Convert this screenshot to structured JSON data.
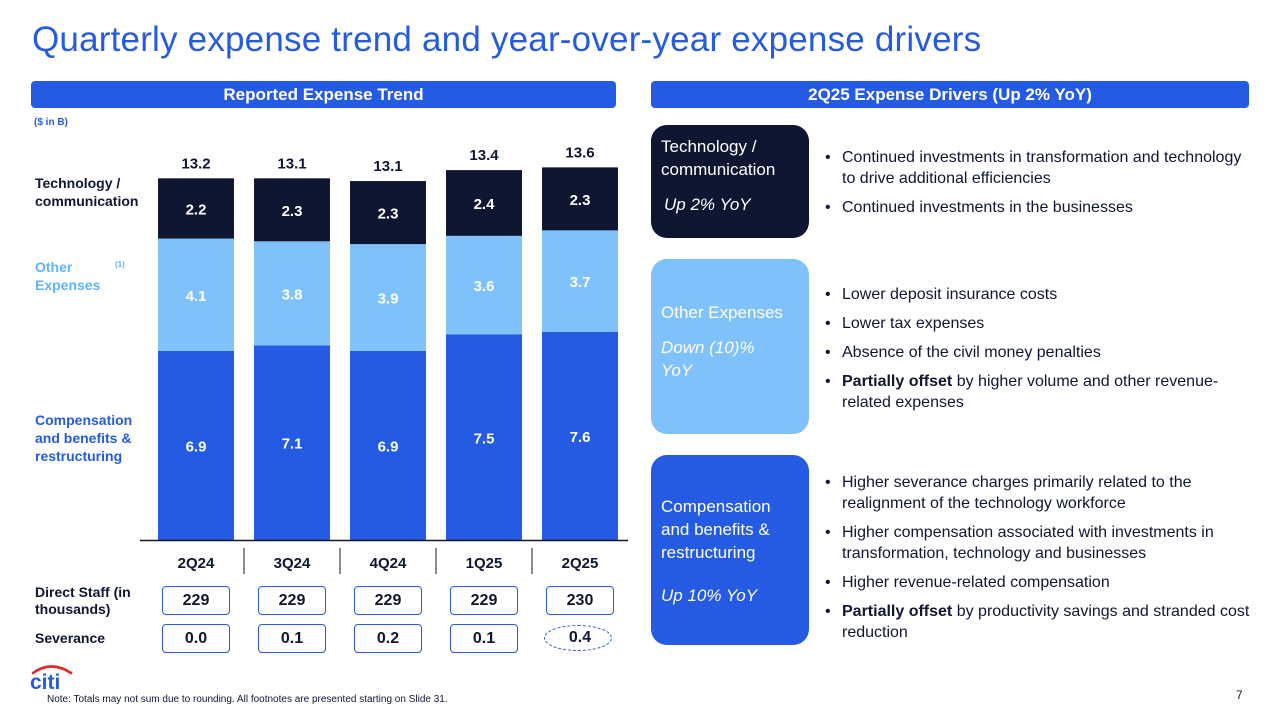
{
  "title": "Quarterly expense trend and year-over-year expense drivers",
  "left_header": "Reported Expense Trend",
  "right_header": "2Q25 Expense Drivers (Up 2% YoY)",
  "unit_label": "($ in B)",
  "row_labels": {
    "tech": "Technology / communication",
    "other": "Other Expenses",
    "other_sup": "(1)",
    "comp": "Compensation and benefits & restructuring"
  },
  "colors": {
    "accent": "#255be3",
    "tech": "#0f1632",
    "other": "#7ec1fb",
    "comp": "#255be3"
  },
  "chart_data": {
    "type": "bar",
    "stacked": true,
    "title": "Reported Expense Trend",
    "ylabel": "$ in B",
    "categories": [
      "2Q24",
      "3Q24",
      "4Q24",
      "1Q25",
      "2Q25"
    ],
    "series": [
      {
        "name": "Compensation and benefits & restructuring",
        "values": [
          "6.9",
          "7.1",
          "6.9",
          "7.5",
          "7.6"
        ]
      },
      {
        "name": "Other Expenses",
        "values": [
          "4.1",
          "3.8",
          "3.9",
          "3.6",
          "3.7"
        ]
      },
      {
        "name": "Technology / communication",
        "values": [
          "2.2",
          "2.3",
          "2.3",
          "2.4",
          "2.3"
        ]
      }
    ],
    "totals": [
      "13.2",
      "13.1",
      "13.1",
      "13.4",
      "13.6"
    ]
  },
  "metrics": {
    "staff_label": "Direct Staff (in thousands)",
    "staff_values": [
      "229",
      "229",
      "229",
      "229",
      "230"
    ],
    "severance_label": "Severance",
    "severance_values": [
      "0.0",
      "0.1",
      "0.2",
      "0.1",
      "0.4"
    ]
  },
  "drivers": {
    "tech": {
      "title": "Technology / communication",
      "change": "Up 2% YoY",
      "bullets": [
        {
          "bold": "",
          "text": "Continued investments in transformation and technology to drive additional efficiencies"
        },
        {
          "bold": "",
          "text": "Continued investments in the businesses"
        }
      ]
    },
    "other": {
      "title": "Other Expenses",
      "change": "Down (10)% YoY",
      "bullets": [
        {
          "bold": "",
          "text": "Lower deposit insurance costs"
        },
        {
          "bold": "",
          "text": "Lower tax expenses"
        },
        {
          "bold": "",
          "text": "Absence of the civil money penalties"
        },
        {
          "bold": "Partially offset",
          "text": " by higher volume and other revenue-related expenses"
        }
      ]
    },
    "comp": {
      "title": "Compensation and benefits & restructuring",
      "change": "Up 10% YoY",
      "bullets": [
        {
          "bold": "",
          "text": "Higher severance charges primarily related to the realignment of the technology workforce"
        },
        {
          "bold": "",
          "text": "Higher compensation associated with investments in transformation, technology and businesses"
        },
        {
          "bold": "",
          "text": "Higher revenue-related compensation"
        },
        {
          "bold": "Partially offset",
          "text": " by productivity savings and stranded cost reduction"
        }
      ]
    }
  },
  "logo_text": "citi",
  "footnote": "Note:  Totals may not sum due to rounding. All footnotes are presented starting on Slide 31.",
  "page_number": "7"
}
